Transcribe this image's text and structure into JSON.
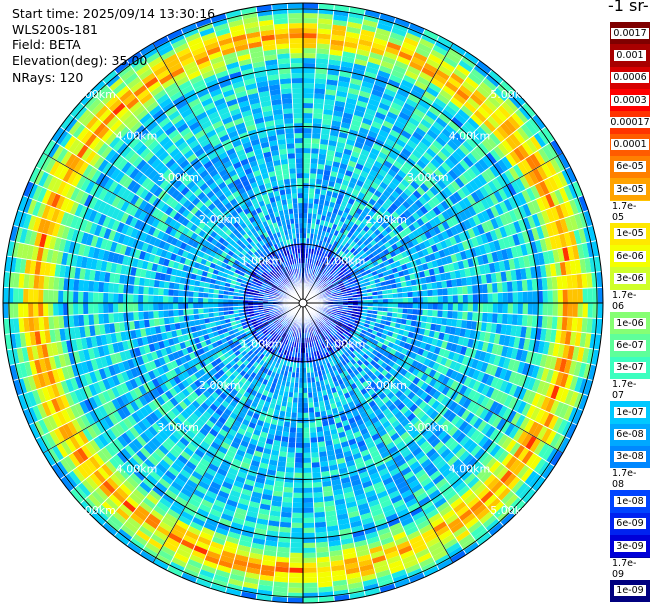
{
  "header": {
    "start_time": "Start time: 2025/09/14 13:30:16",
    "instrument": "WLS200s-181",
    "field": "Field: BETA",
    "elevation": "Elevation(deg): 35.00",
    "nrays": "NRays: 120"
  },
  "colorbar": {
    "title": "-1 sr-",
    "labels": [
      "0.0017",
      "0.001",
      "0.0006",
      "0.0003",
      "0.00017",
      "0.0001",
      "6e-05",
      "3e-05",
      "1.7e-05",
      "1e-05",
      "6e-06",
      "3e-06",
      "1.7e-06",
      "1e-06",
      "6e-07",
      "3e-07",
      "1.7e-07",
      "1e-07",
      "6e-08",
      "3e-08",
      "1.7e-08",
      "1e-08",
      "6e-09",
      "3e-09",
      "1.7e-09",
      "1e-09"
    ],
    "colors": [
      "#7f0000",
      "#a80000",
      "#d60000",
      "#ff0000",
      "#ff3300",
      "#ff5c00",
      "#ff8000",
      "#ffa300",
      "#ffc400",
      "#ffe800",
      "#f4ff00",
      "#cfff2a",
      "#aaff4f",
      "#86ff74",
      "#5fff9a",
      "#3cffbf",
      "#1ae6e6",
      "#00c8ff",
      "#00a8ff",
      "#0088ff",
      "#0066ff",
      "#0044ff",
      "#0022f0",
      "#0000d8",
      "#0000aa",
      "#00007f"
    ]
  },
  "chart_data": {
    "type": "heatmap",
    "projection": "polar (PPI scan)",
    "field": "BETA",
    "elevation_deg": 35.0,
    "nrays": 120,
    "range_rings_km": [
      1,
      2,
      3,
      4,
      5
    ],
    "ring_labels": [
      "1.00km",
      "2.00km",
      "3.00km",
      "4.00km",
      "5.00km"
    ],
    "max_range_km": 5.1,
    "color_scale": "log",
    "value_range": [
      1e-09,
      0.0017
    ],
    "typical_values": {
      "near_range_0_1km": 1e-08,
      "mid_range_1_4km": 6e-08,
      "outer_band_4_5km": 3e-05
    }
  }
}
